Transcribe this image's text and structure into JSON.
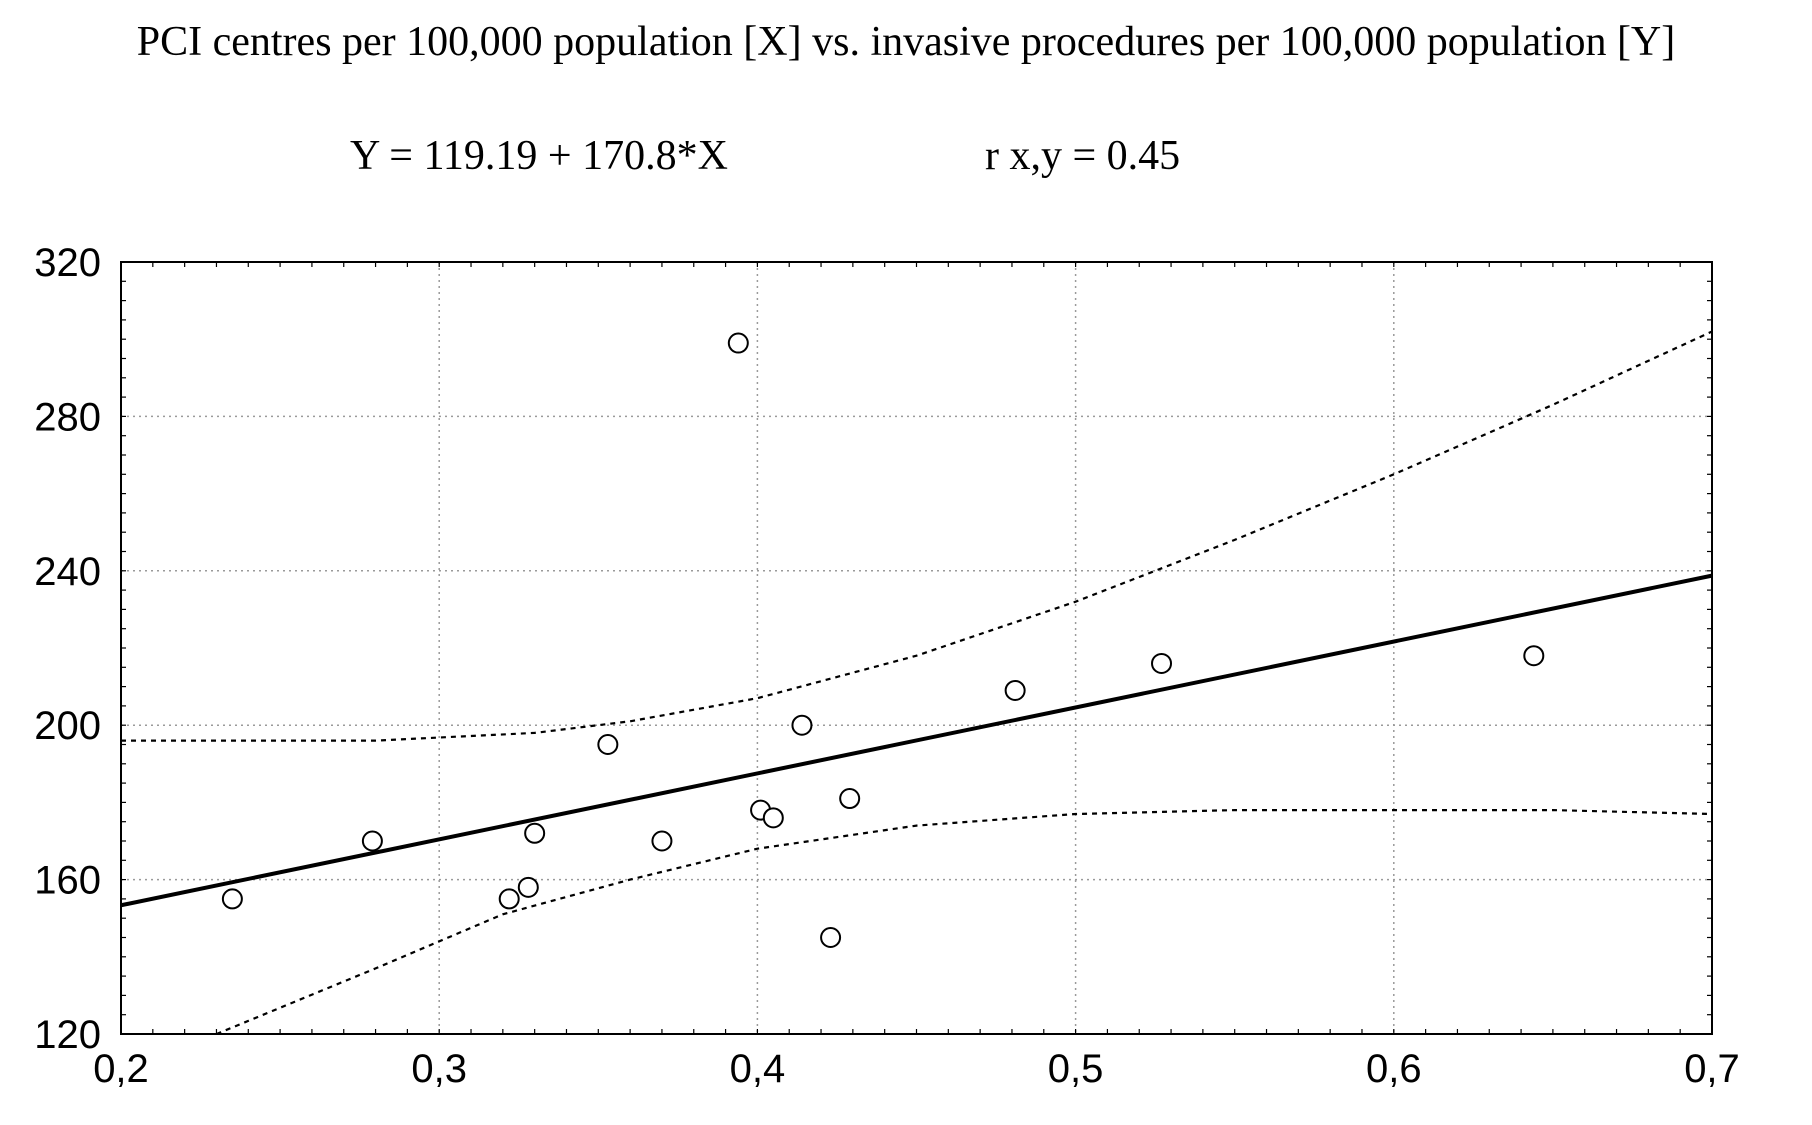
{
  "chart_data": {
    "type": "scatter",
    "title": "PCI centres per 100,000 population [X] vs. invasive procedures per 100,000 population [Y]",
    "regression_equation": "Y = 119.19 + 170.8*X",
    "correlation": "r x,y = 0.45",
    "regression": {
      "intercept": 119.19,
      "slope": 170.8
    },
    "xlabel": "",
    "ylabel": "",
    "xlim": [
      0.2,
      0.7
    ],
    "ylim": [
      120,
      320
    ],
    "grid": true,
    "x_tick_labels": [
      "0,2",
      "0,3",
      "0,4",
      "0,5",
      "0,6",
      "0,7"
    ],
    "y_tick_labels": [
      "120",
      "160",
      "200",
      "240",
      "280",
      "320"
    ],
    "points": [
      {
        "x": 0.235,
        "y": 155
      },
      {
        "x": 0.279,
        "y": 170
      },
      {
        "x": 0.322,
        "y": 155
      },
      {
        "x": 0.328,
        "y": 158
      },
      {
        "x": 0.33,
        "y": 172
      },
      {
        "x": 0.353,
        "y": 195
      },
      {
        "x": 0.37,
        "y": 170
      },
      {
        "x": 0.394,
        "y": 299
      },
      {
        "x": 0.401,
        "y": 178
      },
      {
        "x": 0.405,
        "y": 176
      },
      {
        "x": 0.414,
        "y": 200
      },
      {
        "x": 0.423,
        "y": 145
      },
      {
        "x": 0.429,
        "y": 181
      },
      {
        "x": 0.481,
        "y": 209
      },
      {
        "x": 0.527,
        "y": 216
      },
      {
        "x": 0.644,
        "y": 218
      }
    ],
    "confidence_upper": [
      [
        0.2,
        196
      ],
      [
        0.28,
        196
      ],
      [
        0.33,
        198
      ],
      [
        0.36,
        201
      ],
      [
        0.4,
        207
      ],
      [
        0.45,
        218
      ],
      [
        0.5,
        232
      ],
      [
        0.55,
        248
      ],
      [
        0.6,
        265
      ],
      [
        0.65,
        283
      ],
      [
        0.7,
        302
      ]
    ],
    "confidence_lower": [
      [
        0.23,
        120
      ],
      [
        0.28,
        137
      ],
      [
        0.32,
        151
      ],
      [
        0.36,
        160
      ],
      [
        0.4,
        168
      ],
      [
        0.45,
        174
      ],
      [
        0.5,
        177
      ],
      [
        0.55,
        178
      ],
      [
        0.6,
        178
      ],
      [
        0.65,
        178
      ],
      [
        0.7,
        177
      ]
    ]
  }
}
